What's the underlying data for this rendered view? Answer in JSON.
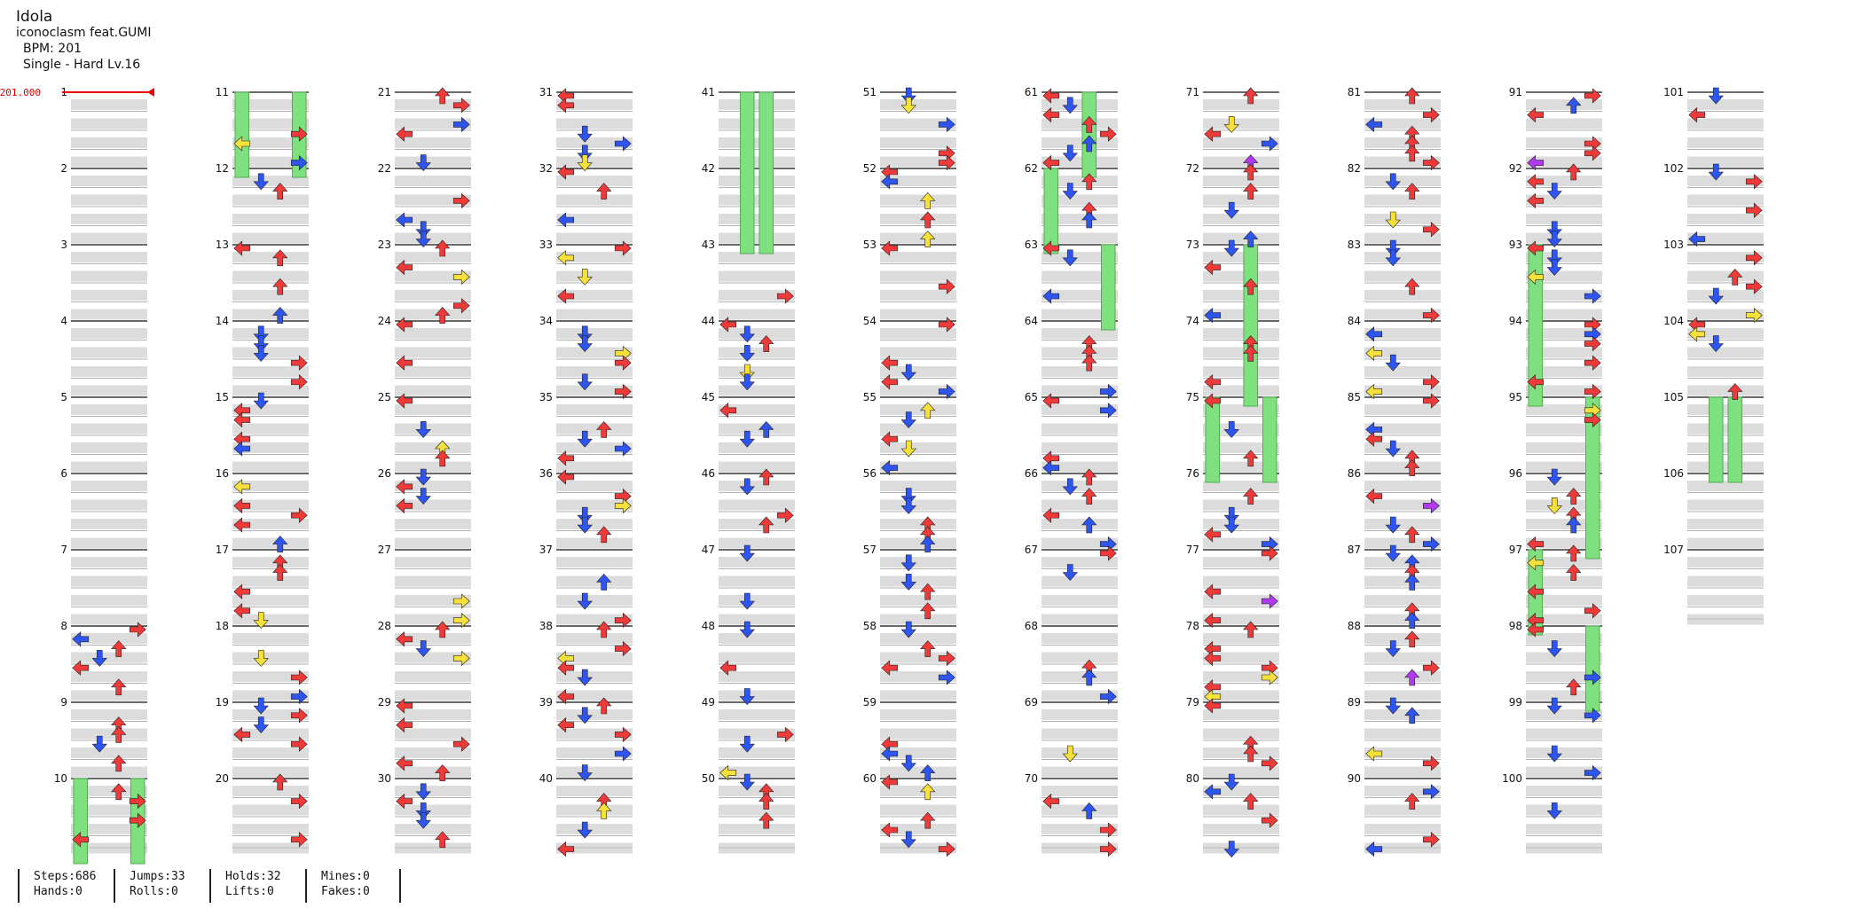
{
  "song": {
    "title": "Idola",
    "artist": "iconoclasm feat.GUMI",
    "bpm_label": "BPM: 201",
    "difficulty": "Single - Hard  Lv.16",
    "bpm_marker": "201.000"
  },
  "measures": {
    "count": 107,
    "per_column": 10,
    "colors": {
      "left": "#f03a3a",
      "down": "#2f55f0",
      "up": "#f03a3a",
      "right": "#f03a3a",
      "blue": "#2f55f0",
      "yellow": "#f6e03a",
      "purple": "#b13af0",
      "green": "#7fe07f"
    }
  },
  "stats": {
    "steps": "Steps:686",
    "hands": "Hands:0",
    "jumps": "Jumps:33",
    "rolls": "Rolls:0",
    "holds": "Holds:32",
    "lifts": "Lifts:0",
    "mines": "Mines:0",
    "fakes": "Fakes:0"
  }
}
